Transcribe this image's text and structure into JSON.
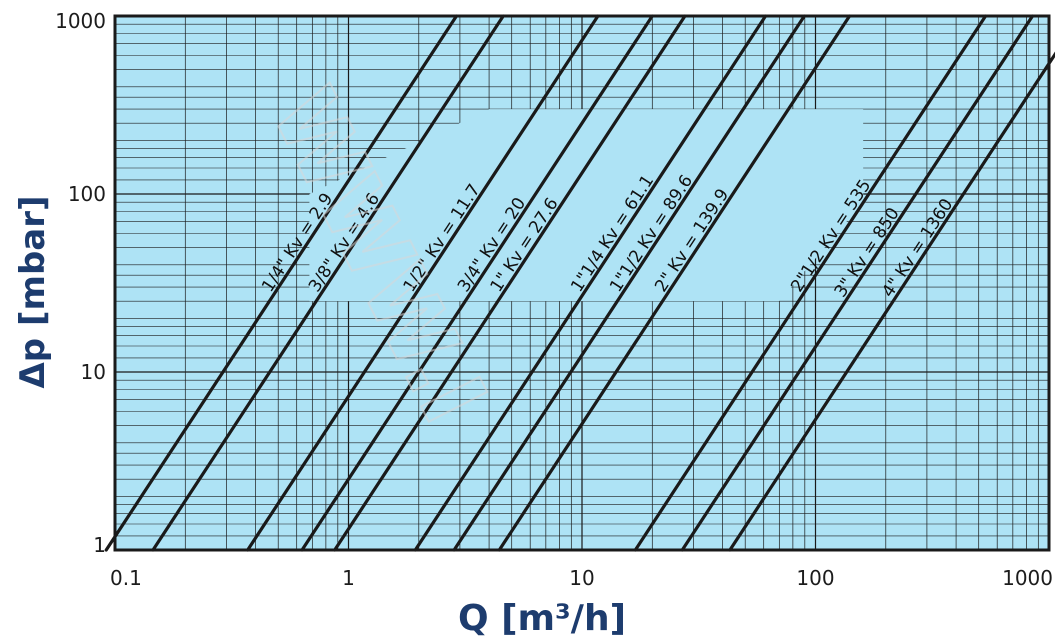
{
  "chart_data": {
    "type": "line",
    "xlabel": "Q [m³/h]",
    "ylabel": "Δp [mbar]",
    "x_scale": "log",
    "y_scale": "log",
    "xlim": [
      0.1,
      1000
    ],
    "ylim": [
      1,
      1000
    ],
    "x_ticks": [
      "0.1",
      "1",
      "10",
      "100",
      "1000"
    ],
    "y_ticks": [
      "1",
      "10",
      "100",
      "1000"
    ],
    "grid": true,
    "colors": {
      "plot_bg": "#aee3f5",
      "grid": "#1a1a1a",
      "curve": "#1a1a1a",
      "axis_title": "#1d3c6e"
    },
    "watermark": "WWW.I",
    "series": [
      {
        "label": "1/4\"  Kv = 2.9",
        "kv": 2.9
      },
      {
        "label": "3/8\" Kv = 4.6",
        "kv": 4.6
      },
      {
        "label": "1/2\" Kv = 11.7",
        "kv": 11.7
      },
      {
        "label": "3/4\"  Kv = 20",
        "kv": 20
      },
      {
        "label": "1\"  Kv = 27.6",
        "kv": 27.6
      },
      {
        "label": "1\"1/4  Kv = 61.1",
        "kv": 61.1
      },
      {
        "label": "1\"1/2 Kv = 89.6",
        "kv": 89.6
      },
      {
        "label": "2\"  Kv = 139.9",
        "kv": 139.9
      },
      {
        "label": "2\"1/2  Kv = 535",
        "kv": 535
      },
      {
        "label": "3\"  Kv = 850",
        "kv": 850
      },
      {
        "label": "4\"  Kv = 1360",
        "kv": 1360
      }
    ]
  }
}
